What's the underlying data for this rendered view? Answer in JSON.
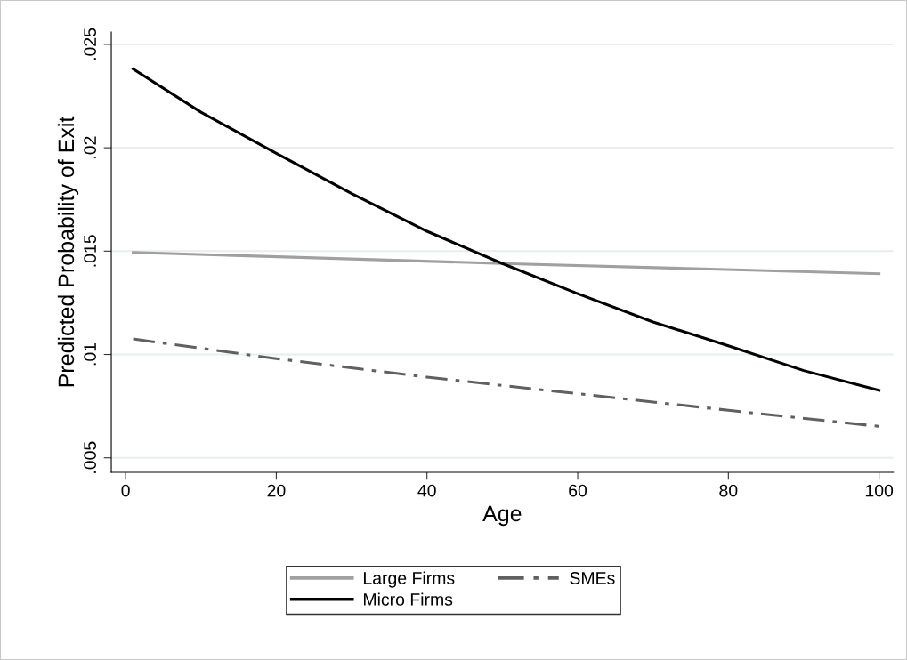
{
  "chart_data": {
    "type": "line",
    "xlabel": "Age",
    "ylabel": "Predicted Probability of Exit",
    "xlim": [
      -1.9,
      101.9
    ],
    "ylim": [
      0.0043,
      0.0256
    ],
    "xticks": [
      0,
      20,
      40,
      60,
      80,
      100
    ],
    "yticks": [
      {
        "value": 0.005,
        "label": ".005"
      },
      {
        "value": 0.01,
        "label": ".01"
      },
      {
        "value": 0.015,
        "label": ".015"
      },
      {
        "value": 0.02,
        "label": ".02"
      },
      {
        "value": 0.025,
        "label": ".025"
      }
    ],
    "grid": "y",
    "legend": "bottom",
    "marker": "none",
    "series": [
      {
        "name": "Large Firms",
        "color": "#a0a0a0",
        "line_style": "solid",
        "x": [
          1,
          50,
          100
        ],
        "values": [
          0.01494,
          0.0144,
          0.01391
        ]
      },
      {
        "name": "SMEs",
        "color": "#606060",
        "line_style": "dashdot",
        "x": [
          1,
          20,
          40,
          50,
          60,
          80,
          100
        ],
        "values": [
          0.01075,
          0.0098,
          0.0089,
          0.0085,
          0.0081,
          0.0073,
          0.00652
        ]
      },
      {
        "name": "Micro Firms",
        "color": "#000000",
        "line_style": "solid",
        "x": [
          1,
          10,
          20,
          30,
          40,
          50,
          60,
          70,
          80,
          90,
          100
        ],
        "values": [
          0.02381,
          0.02172,
          0.01973,
          0.01778,
          0.01596,
          0.0144,
          0.01294,
          0.01157,
          0.01042,
          0.00922,
          0.00826
        ]
      }
    ]
  }
}
